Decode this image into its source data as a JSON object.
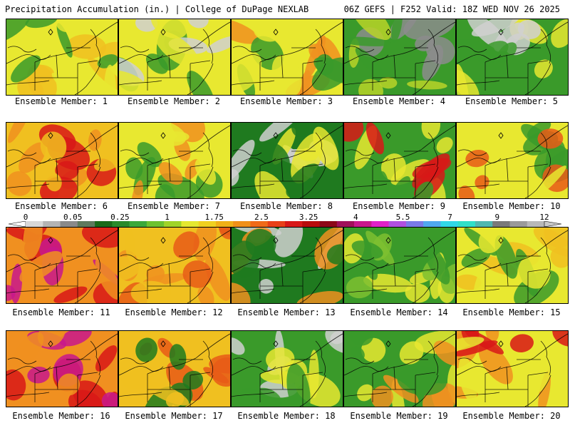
{
  "header": {
    "left_title": "Precipitation Accumulation (in.) | College of DuPage NEXLAB",
    "right_title": "06Z GEFS | F252 Valid: 18Z WED NOV 26 2025"
  },
  "legend": {
    "ticks": [
      "0",
      "0.05",
      "0.25",
      "1",
      "1.75",
      "2.5",
      "3.25",
      "4",
      "5.5",
      "7",
      "9",
      "12"
    ],
    "colors": [
      "#d8d8d8",
      "#b4b4b4",
      "#8a8a8a",
      "#5e7a5e",
      "#1a6a1a",
      "#2a8a2a",
      "#3aa83a",
      "#6cc230",
      "#a0d428",
      "#e4e830",
      "#f0d020",
      "#f0b018",
      "#f09018",
      "#f06a18",
      "#e84018",
      "#d81818",
      "#b80c0c",
      "#8c0818",
      "#a0105a",
      "#c8188c",
      "#e020c8",
      "#b050e0",
      "#7a7ae8",
      "#50a8f0",
      "#30d8e8",
      "#30e0c8",
      "#50b8b0",
      "#7a7a7a",
      "#9a9a9a",
      "#b8b8b8"
    ]
  },
  "map_colors": {
    "gray_light": "#d0d0d0",
    "gray": "#8c8c8c",
    "green_dark": "#1f7a1f",
    "green": "#3a9a2a",
    "green_light": "#7ec030",
    "yellow_green": "#b8d428",
    "yellow": "#e8e830",
    "gold": "#f0c020",
    "orange": "#f09020",
    "red_orange": "#e85a18",
    "red": "#d81818",
    "dark_red": "#a00c0c",
    "magenta": "#c8188c",
    "cyan": "#40e0e0"
  },
  "members": [
    {
      "label": "Ensemble Member: 1",
      "palette": [
        "yellow",
        "gold",
        "green"
      ]
    },
    {
      "label": "Ensemble Member: 2",
      "palette": [
        "yellow",
        "green",
        "gray_light"
      ]
    },
    {
      "label": "Ensemble Member: 3",
      "palette": [
        "yellow",
        "orange",
        "green"
      ]
    },
    {
      "label": "Ensemble Member: 4",
      "palette": [
        "green",
        "gray",
        "yellow_green"
      ]
    },
    {
      "label": "Ensemble Member: 5",
      "palette": [
        "green",
        "yellow",
        "gray_light"
      ]
    },
    {
      "label": "Ensemble Member: 6",
      "palette": [
        "gold",
        "orange",
        "red"
      ]
    },
    {
      "label": "Ensemble Member: 7",
      "palette": [
        "yellow",
        "green",
        "orange"
      ]
    },
    {
      "label": "Ensemble Member: 8",
      "palette": [
        "green_dark",
        "gray_light",
        "yellow"
      ]
    },
    {
      "label": "Ensemble Member: 9",
      "palette": [
        "green",
        "yellow",
        "red"
      ]
    },
    {
      "label": "Ensemble Member: 10",
      "palette": [
        "yellow",
        "green",
        "red_orange"
      ]
    },
    {
      "label": "Ensemble Member: 11",
      "palette": [
        "orange",
        "red",
        "magenta"
      ]
    },
    {
      "label": "Ensemble Member: 12",
      "palette": [
        "gold",
        "orange",
        "red_orange"
      ]
    },
    {
      "label": "Ensemble Member: 13",
      "palette": [
        "green_dark",
        "gray_light",
        "orange"
      ]
    },
    {
      "label": "Ensemble Member: 14",
      "palette": [
        "green",
        "yellow",
        "green_light"
      ]
    },
    {
      "label": "Ensemble Member: 15",
      "palette": [
        "yellow",
        "gold",
        "green"
      ]
    },
    {
      "label": "Ensemble Member: 16",
      "palette": [
        "orange",
        "red",
        "magenta"
      ]
    },
    {
      "label": "Ensemble Member: 17",
      "palette": [
        "gold",
        "red_orange",
        "green_dark"
      ]
    },
    {
      "label": "Ensemble Member: 18",
      "palette": [
        "green",
        "gray_light",
        "yellow"
      ]
    },
    {
      "label": "Ensemble Member: 19",
      "palette": [
        "green",
        "yellow",
        "orange"
      ]
    },
    {
      "label": "Ensemble Member: 20",
      "palette": [
        "yellow",
        "orange",
        "red"
      ]
    }
  ]
}
